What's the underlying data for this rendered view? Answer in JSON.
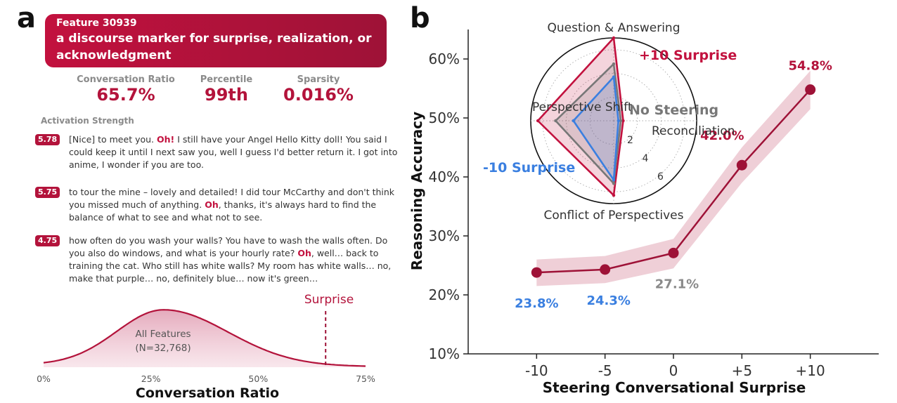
{
  "panel_a": {
    "letter": "a",
    "feature_id": "Feature 30939",
    "feature_description": "a discourse marker for surprise, realization, or acknowledgment",
    "stats": [
      {
        "label": "Conversation Ratio",
        "value": "65.7%"
      },
      {
        "label": "Percentile",
        "value": "99th"
      },
      {
        "label": "Sparsity",
        "value": "0.016%"
      }
    ],
    "activation_label": "Activation Strength",
    "examples": [
      {
        "strength": "5.78",
        "before": "[Nice] to meet you. ",
        "marker": "Oh!",
        "after": " I still have your Angel Hello Kitty doll! You said I could keep it until I next saw you, well I guess I'd better return it. I got into anime, I wonder if you are too."
      },
      {
        "strength": "5.75",
        "before": "to tour the mine – lovely and detailed! I did tour McCarthy and don't think you missed much of anything. ",
        "marker": "Oh",
        "after": ", thanks, it's always hard to find the balance of what to see and what not to see."
      },
      {
        "strength": "4.75",
        "before": "how often do you wash your walls? You have to wash the walls often. Do you also do windows, and what is your hourly rate? ",
        "marker": "Oh",
        "after": ", well… back to training the cat. Who still has white walls? My room has white walls… no, make that purple… no, definitely blue… now it's green…"
      }
    ],
    "distribution": {
      "all_features_label": "All Features",
      "n_label": "(N=32,768)",
      "marker_label": "Surprise",
      "marker_value": 65.7,
      "xlabel": "Conversation Ratio",
      "xticks": [
        "0%",
        "25%",
        "50%",
        "75%"
      ],
      "xtick_values": [
        0,
        25,
        50,
        75
      ],
      "fill_color": "#e9b4c4",
      "line_color": "#b3133b"
    }
  },
  "chart_data": {
    "type": "line",
    "letter": "b",
    "categories": [
      "-10",
      "-5",
      "0",
      "+5",
      "+10"
    ],
    "x": [
      -10,
      -5,
      0,
      5,
      10
    ],
    "values": [
      23.8,
      24.3,
      27.1,
      42.0,
      54.8
    ],
    "value_labels": [
      "23.8%",
      "24.3%",
      "27.1%",
      "42.0%",
      "54.8%"
    ],
    "label_colors": [
      "#3a7fe0",
      "#3a7fe0",
      "#8a8a8a",
      "#b3133b",
      "#b3133b"
    ],
    "band_lower": [
      21.5,
      22.0,
      24.5,
      39.0,
      51.5
    ],
    "band_upper": [
      26.0,
      26.6,
      29.5,
      45.0,
      58.0
    ],
    "xlabel": "Steering Conversational Surprise",
    "ylabel": "Reasoning Accuracy",
    "ylim": [
      10,
      65
    ],
    "yticks": [
      10,
      20,
      30,
      40,
      50,
      60
    ],
    "ytick_labels": [
      "10%",
      "20%",
      "30%",
      "40%",
      "50%",
      "60%"
    ],
    "xlim": [
      -15,
      15
    ],
    "line_color": "#9e1237",
    "band_color": "#e9bfca",
    "inset_radar": {
      "axes": [
        "Question & Answering",
        "Reconciliation",
        "Conflict of Perspectives",
        "Perspective Shift"
      ],
      "rmax": 7,
      "rticks": [
        2,
        4,
        6
      ],
      "series": [
        {
          "name": "+10 Surprise",
          "values": [
            7.0,
            0.8,
            6.3,
            6.4
          ],
          "color": "#c2113e"
        },
        {
          "name": "No Steering",
          "values": [
            4.8,
            0.6,
            5.3,
            4.9
          ],
          "color": "#777777"
        },
        {
          "name": "-10 Surprise",
          "values": [
            3.7,
            0.4,
            5.0,
            3.4
          ],
          "color": "#3a7fe0"
        }
      ]
    }
  }
}
